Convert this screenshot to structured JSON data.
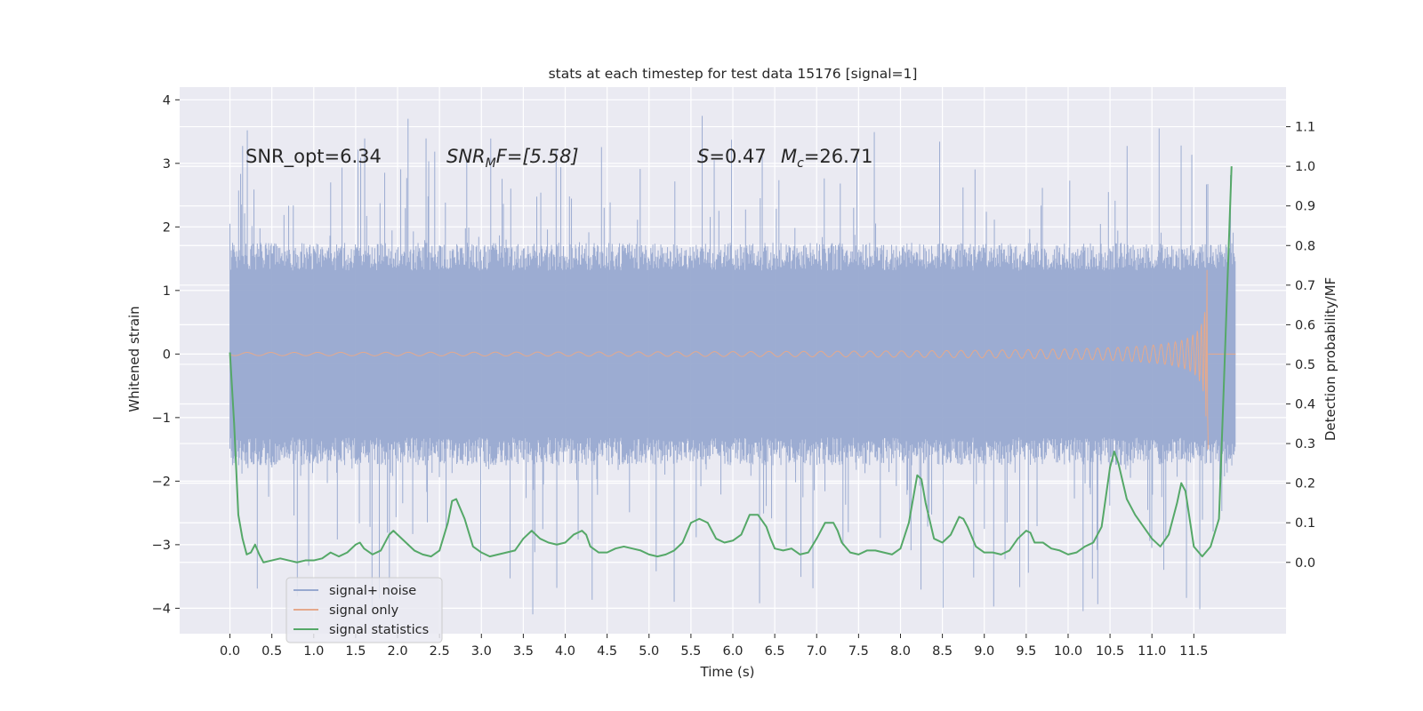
{
  "chart_data": {
    "type": "line",
    "title": "stats at each timestep for test data 15176 [signal=1]",
    "xlabel": "Time (s)",
    "ylabel": "Whitened strain",
    "y2label": "Detection probability/MF",
    "xlim": [
      -0.6,
      12.6
    ],
    "ylim": [
      -4.4,
      4.2
    ],
    "y2lim": [
      -0.18,
      1.2
    ],
    "x_ticks": [
      "0.0",
      "0.5",
      "1.0",
      "1.5",
      "2.0",
      "2.5",
      "3.0",
      "3.5",
      "4.0",
      "4.5",
      "5.0",
      "5.5",
      "6.0",
      "6.5",
      "7.0",
      "7.5",
      "8.0",
      "8.5",
      "9.0",
      "9.5",
      "10.0",
      "10.5",
      "11.0",
      "11.5"
    ],
    "y_ticks": [
      "4",
      "3",
      "2",
      "1",
      "0",
      "−1",
      "−2",
      "−3",
      "−4"
    ],
    "y2_ticks": [
      "1.1",
      "1.0",
      "0.9",
      "0.8",
      "0.7",
      "0.6",
      "0.5",
      "0.4",
      "0.3",
      "0.2",
      "0.1",
      "0.0"
    ],
    "grid": true,
    "legend_position": "lower-left",
    "colors": {
      "background": "#EAEAF2",
      "grid": "#FFFFFF",
      "noise": "#98A9D0",
      "signal": "#E5A98C",
      "stats": "#55A868"
    },
    "annotations": {
      "snr_opt": "SNR_opt=6.34",
      "snr_mf_main": "SNR",
      "snr_mf_sub": "M",
      "snr_mf_rest": "F=[5.58]",
      "s_label": "S",
      "s_value": "=0.47",
      "mc_label": "M",
      "mc_sub": "c",
      "mc_value": "=26.71"
    },
    "series": [
      {
        "name": "signal+ noise",
        "axis": "left",
        "description_points": "dense whitened strain noise, roughly within ±1.8 with spikes to ±3.8",
        "envelope": {
          "x_start": 0.0,
          "x_end": 12.0,
          "amplitude": 1.75,
          "max_spike": 3.8,
          "min_spike": -4.1
        }
      },
      {
        "name": "signal only",
        "axis": "left",
        "chirp": {
          "x_start": 0.0,
          "x_end": 11.67,
          "max_amplitude": 1.35,
          "tail_end": 12.0
        }
      },
      {
        "name": "signal statistics",
        "axis": "right",
        "x": [
          0.0,
          0.05,
          0.1,
          0.15,
          0.2,
          0.25,
          0.3,
          0.35,
          0.4,
          0.5,
          0.6,
          0.7,
          0.8,
          0.9,
          1.0,
          1.1,
          1.2,
          1.3,
          1.4,
          1.5,
          1.55,
          1.6,
          1.7,
          1.8,
          1.9,
          1.95,
          2.0,
          2.1,
          2.2,
          2.3,
          2.4,
          2.5,
          2.6,
          2.65,
          2.7,
          2.8,
          2.9,
          3.0,
          3.1,
          3.2,
          3.3,
          3.4,
          3.5,
          3.6,
          3.7,
          3.8,
          3.9,
          4.0,
          4.1,
          4.2,
          4.25,
          4.3,
          4.4,
          4.5,
          4.6,
          4.7,
          4.8,
          4.9,
          5.0,
          5.1,
          5.2,
          5.3,
          5.4,
          5.5,
          5.6,
          5.7,
          5.75,
          5.8,
          5.9,
          6.0,
          6.1,
          6.2,
          6.3,
          6.4,
          6.45,
          6.5,
          6.6,
          6.7,
          6.8,
          6.9,
          7.0,
          7.1,
          7.2,
          7.25,
          7.3,
          7.4,
          7.5,
          7.6,
          7.7,
          7.8,
          7.9,
          8.0,
          8.1,
          8.2,
          8.25,
          8.3,
          8.4,
          8.5,
          8.6,
          8.7,
          8.75,
          8.8,
          8.9,
          9.0,
          9.1,
          9.2,
          9.3,
          9.4,
          9.5,
          9.55,
          9.6,
          9.7,
          9.8,
          9.9,
          10.0,
          10.1,
          10.2,
          10.3,
          10.4,
          10.5,
          10.55,
          10.6,
          10.7,
          10.8,
          10.9,
          11.0,
          11.1,
          11.2,
          11.3,
          11.35,
          11.4,
          11.5,
          11.6,
          11.7,
          11.8,
          11.85,
          11.9,
          11.95
        ],
        "values": [
          0.53,
          0.35,
          0.12,
          0.06,
          0.02,
          0.025,
          0.045,
          0.02,
          0.0,
          0.005,
          0.01,
          0.005,
          0.0,
          0.005,
          0.005,
          0.01,
          0.025,
          0.015,
          0.025,
          0.045,
          0.05,
          0.035,
          0.02,
          0.03,
          0.07,
          0.08,
          0.07,
          0.05,
          0.03,
          0.02,
          0.015,
          0.03,
          0.1,
          0.155,
          0.16,
          0.11,
          0.04,
          0.025,
          0.015,
          0.02,
          0.025,
          0.03,
          0.06,
          0.08,
          0.06,
          0.05,
          0.045,
          0.05,
          0.07,
          0.08,
          0.07,
          0.04,
          0.025,
          0.025,
          0.035,
          0.04,
          0.035,
          0.03,
          0.02,
          0.015,
          0.02,
          0.03,
          0.05,
          0.1,
          0.11,
          0.1,
          0.08,
          0.06,
          0.05,
          0.055,
          0.07,
          0.12,
          0.12,
          0.09,
          0.06,
          0.035,
          0.03,
          0.035,
          0.02,
          0.025,
          0.06,
          0.1,
          0.1,
          0.08,
          0.05,
          0.025,
          0.02,
          0.03,
          0.03,
          0.025,
          0.02,
          0.035,
          0.1,
          0.22,
          0.21,
          0.15,
          0.06,
          0.05,
          0.07,
          0.115,
          0.11,
          0.09,
          0.04,
          0.025,
          0.025,
          0.02,
          0.03,
          0.06,
          0.08,
          0.075,
          0.05,
          0.05,
          0.035,
          0.03,
          0.02,
          0.025,
          0.04,
          0.05,
          0.09,
          0.24,
          0.28,
          0.25,
          0.16,
          0.12,
          0.09,
          0.06,
          0.04,
          0.07,
          0.15,
          0.2,
          0.18,
          0.04,
          0.015,
          0.04,
          0.11,
          0.4,
          0.7,
          1.0
        ]
      }
    ]
  }
}
